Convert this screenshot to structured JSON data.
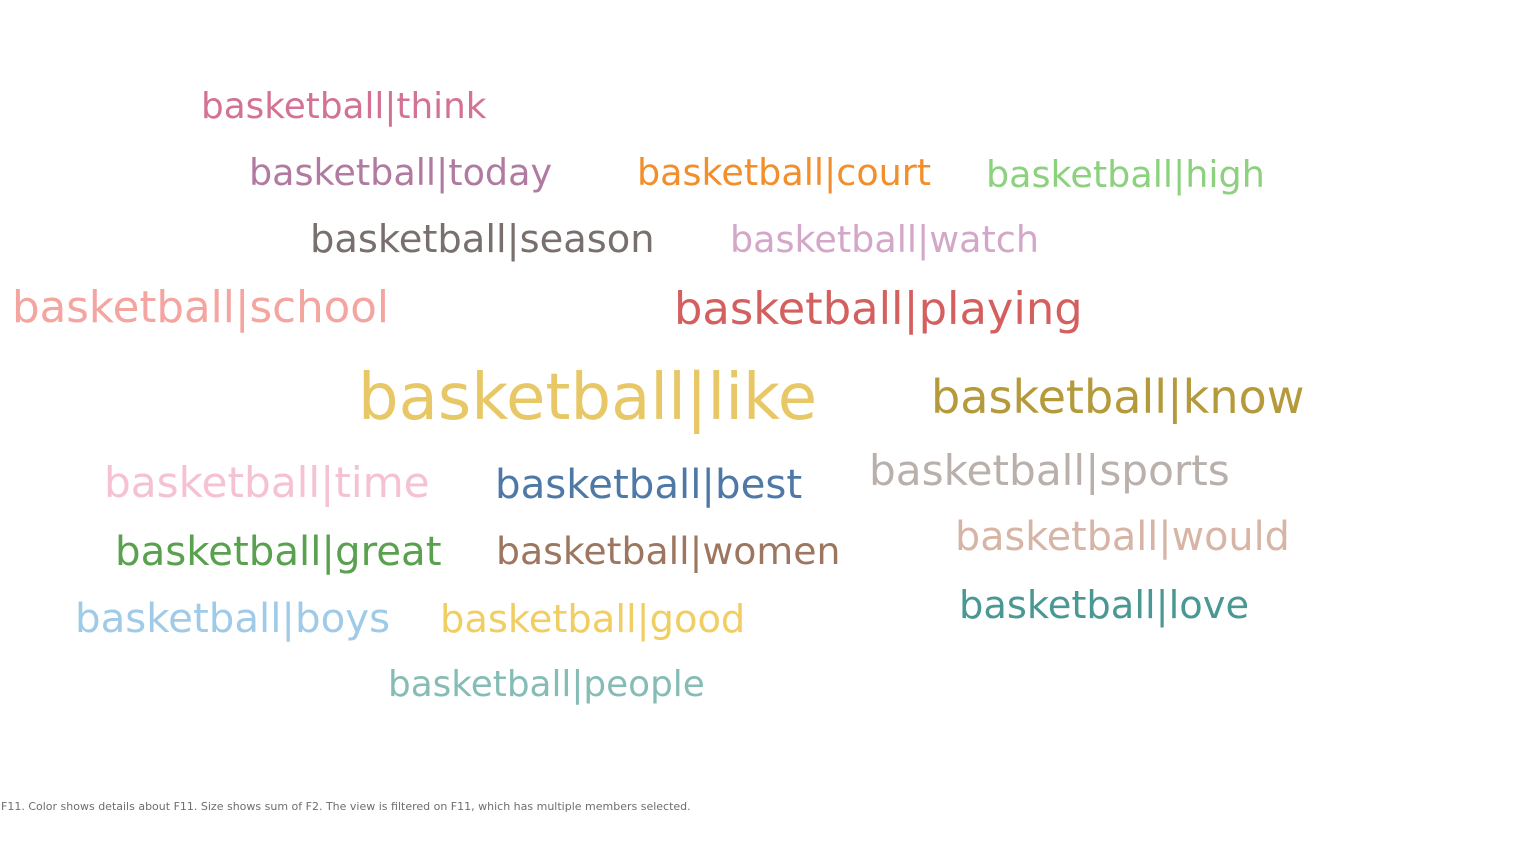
{
  "chart_data": {
    "type": "wordcloud",
    "encoding": {
      "color": "F11",
      "size": "sum of F2"
    },
    "words": [
      {
        "text": "basketball|like",
        "value": 100,
        "color": "#e8c866"
      },
      {
        "text": "basketball|know",
        "value": 72,
        "color": "#b49a3a"
      },
      {
        "text": "basketball|playing",
        "value": 70,
        "color": "#d45f5f"
      },
      {
        "text": "basketball|school",
        "value": 68,
        "color": "#f4a5a0"
      },
      {
        "text": "basketball|sports",
        "value": 66,
        "color": "#bab0ab"
      },
      {
        "text": "basketball|time",
        "value": 66,
        "color": "#f5c2d2"
      },
      {
        "text": "basketball|best",
        "value": 63,
        "color": "#4e79a7"
      },
      {
        "text": "basketball|boys",
        "value": 63,
        "color": "#a0cbe8"
      },
      {
        "text": "basketball|great",
        "value": 63,
        "color": "#59a14f"
      },
      {
        "text": "basketball|would",
        "value": 62,
        "color": "#d7b5a6"
      },
      {
        "text": "basketball|love",
        "value": 60,
        "color": "#499894"
      },
      {
        "text": "basketball|season",
        "value": 60,
        "color": "#79706e"
      },
      {
        "text": "basketball|good",
        "value": 60,
        "color": "#f1ce63"
      },
      {
        "text": "basketball|women",
        "value": 59,
        "color": "#9d7660"
      },
      {
        "text": "basketball|watch",
        "value": 57,
        "color": "#d4a6c8"
      },
      {
        "text": "basketball|today",
        "value": 57,
        "color": "#b07aa1"
      },
      {
        "text": "basketball|court",
        "value": 57,
        "color": "#f28e2b"
      },
      {
        "text": "basketball|high",
        "value": 57,
        "color": "#8cd17d"
      },
      {
        "text": "basketball|people",
        "value": 56,
        "color": "#86bcb6"
      },
      {
        "text": "basketball|think",
        "value": 56,
        "color": "#d37295"
      }
    ]
  },
  "caption": "F11.  Color shows details about F11.  Size shows sum of F2. The view is filtered on F11, which has multiple members selected."
}
